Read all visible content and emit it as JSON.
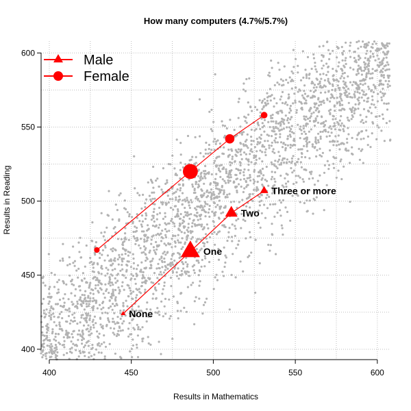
{
  "chart_data": {
    "type": "scatter",
    "title": "How many computers (4.7%/5.7%)",
    "xlabel": "Results in Mathematics",
    "ylabel": "Results in Reading",
    "xlim": [
      395,
      608
    ],
    "ylim": [
      393,
      608
    ],
    "x_ticks": [
      400,
      450,
      500,
      550,
      600
    ],
    "y_ticks": [
      400,
      450,
      500,
      550,
      600
    ],
    "grid": true,
    "legend_position": "top-left",
    "background_points": {
      "color": "#b3b3b3",
      "count": 3000
    },
    "series": [
      {
        "name": "Male",
        "marker": "triangle",
        "color": "#ff0000",
        "points": [
          {
            "label": "None",
            "x": 445,
            "y": 424,
            "size": 1
          },
          {
            "label": "One",
            "x": 486,
            "y": 466,
            "size": 4
          },
          {
            "label": "Two",
            "x": 511,
            "y": 492,
            "size": 2.6
          },
          {
            "label": "Three or more",
            "x": 531,
            "y": 507,
            "size": 1.7
          }
        ]
      },
      {
        "name": "Female",
        "marker": "circle",
        "color": "#ff0000",
        "points": [
          {
            "x": 429,
            "y": 467,
            "size": 1.2
          },
          {
            "x": 486,
            "y": 520,
            "size": 3.2
          },
          {
            "x": 510,
            "y": 542,
            "size": 2
          },
          {
            "x": 531,
            "y": 558,
            "size": 1.4
          }
        ]
      }
    ]
  }
}
